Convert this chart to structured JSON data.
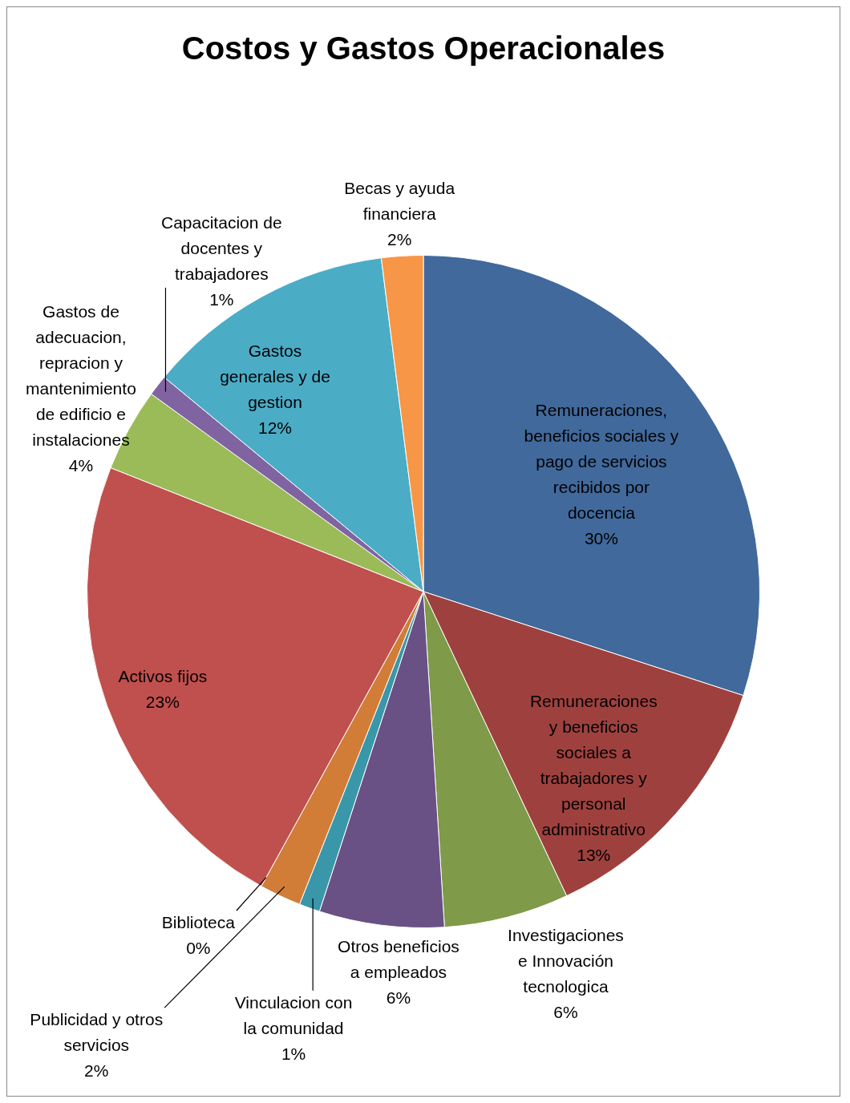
{
  "chart_data": {
    "type": "pie",
    "title": "Costos y Gastos Operacionales",
    "categories": [
      "Remuneraciones, beneficios sociales y pago de servicios recibidos por docencia",
      "Remuneraciones y beneficios sociales a trabajadores y personal administrativo",
      "Investigaciones e Innovación tecnologica",
      "Otros beneficios a empleados",
      "Vinculacion con la comunidad",
      "Publicidad y otros servicios",
      "Biblioteca",
      "Activos fijos",
      "Gastos de adecuacion, repracion y mantenimiento de edificio e instalaciones",
      "Capacitacion de docentes y trabajadores",
      "Gastos generales y de gestion",
      "Becas y ayuda financiera"
    ],
    "values": [
      30,
      13,
      6,
      6,
      1,
      2,
      0,
      23,
      4,
      1,
      12,
      2
    ],
    "value_labels": [
      "30%",
      "13%",
      "6%",
      "6%",
      "1%",
      "2%",
      "0%",
      "23%",
      "4%",
      "1%",
      "12%",
      "2%"
    ],
    "colors": [
      "#41699b",
      "#9e413e",
      "#7f9a48",
      "#695185",
      "#3a97a9",
      "#d17d38",
      "#4a7cc0",
      "#c0504d",
      "#9bbb59",
      "#8064a2",
      "#4bacc6",
      "#f79646"
    ]
  }
}
